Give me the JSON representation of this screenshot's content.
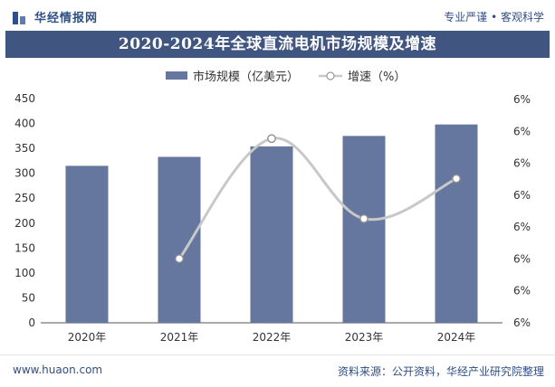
{
  "brand": {
    "name": "华经情报网"
  },
  "slogan": "专业严谨 • 客观科学",
  "footer": {
    "url": "www.huaon.com",
    "source": "资料来源：公开资料，华经产业研究院整理"
  },
  "chart_data": {
    "type": "bar+line",
    "title": "2020-2024年全球直流电机市场规模及增速",
    "categories": [
      "2020年",
      "2021年",
      "2022年",
      "2023年",
      "2024年"
    ],
    "series": [
      {
        "name": "市场规模（亿美元）",
        "type": "bar",
        "axis": "left",
        "values": [
          315,
          333,
          354,
          375,
          398
        ]
      },
      {
        "name": "增速（%）",
        "type": "line",
        "axis": "right",
        "values": [
          null,
          5.7,
          6.3,
          5.9,
          6.1
        ]
      }
    ],
    "left_axis": {
      "ylim": [
        0,
        450
      ],
      "ticks": [
        0,
        50,
        100,
        150,
        200,
        250,
        300,
        350,
        400,
        450
      ]
    },
    "right_axis_tick_label": "6%",
    "right_axis_tick_count": 8,
    "legend_position": "top",
    "colors": {
      "bar": "#65779e",
      "line": "#c8c8c8",
      "marker_fill": "#ffffff",
      "title_bg": "#40557f"
    }
  }
}
